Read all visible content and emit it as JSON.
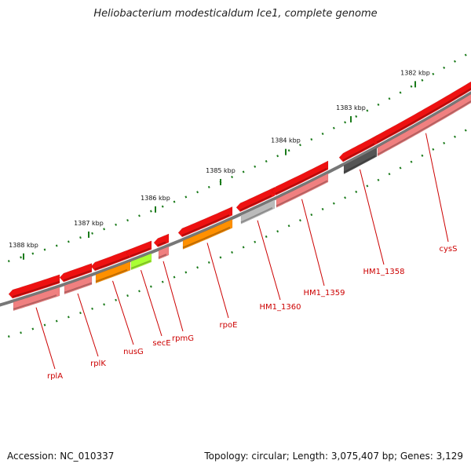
{
  "title": "Heliobacterium modesticaldum Ice1, complete genome",
  "footer": {
    "accession": "Accession: NC_010337",
    "topology": "Topology: circular; Length: 3,075,407 bp; Genes: 3,129"
  },
  "colors": {
    "backbone": "#777777",
    "ruler": "#1a7a1a",
    "gene_red": "#ee1111",
    "feature_pink": "#f08080",
    "feature_orange": "#ff9000",
    "feature_green": "#aaff33",
    "feature_grey": "#bbbbbb",
    "feature_dark": "#555555",
    "label": "#cc0000"
  },
  "ruler_ticks": [
    "1388 kbp",
    "1387 kbp",
    "1386 kbp",
    "1385 kbp",
    "1384 kbp",
    "1383 kbp",
    "1382 kbp"
  ],
  "genes": [
    {
      "name": "rplA",
      "feature": "pink"
    },
    {
      "name": "rplK",
      "feature": "pink"
    },
    {
      "name": "nusG",
      "feature": "orange"
    },
    {
      "name": "secE",
      "feature": "green"
    },
    {
      "name": "rpmG",
      "feature": "pink"
    },
    {
      "name": "rpoE",
      "feature": "orange"
    },
    {
      "name": "HM1_1360",
      "feature": "grey"
    },
    {
      "name": "HM1_1359",
      "feature": "pink"
    },
    {
      "name": "HM1_1358",
      "feature": "dark"
    },
    {
      "name": "cysS",
      "feature": "pink"
    }
  ]
}
